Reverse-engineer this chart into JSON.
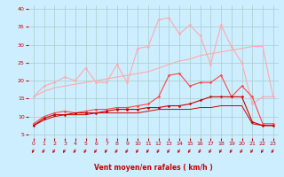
{
  "x": [
    0,
    1,
    2,
    3,
    4,
    5,
    6,
    7,
    8,
    9,
    10,
    11,
    12,
    13,
    14,
    15,
    16,
    17,
    18,
    19,
    20,
    21,
    22,
    23
  ],
  "series": [
    {
      "name": "diagonal_light",
      "color": "#ffaaaa",
      "linewidth": 0.8,
      "marker": null,
      "values": [
        15.5,
        17.0,
        18.0,
        18.5,
        19.0,
        19.5,
        20.0,
        20.5,
        21.0,
        21.5,
        22.0,
        22.5,
        23.5,
        24.5,
        25.5,
        26.0,
        27.0,
        27.5,
        28.0,
        28.5,
        29.0,
        29.5,
        29.5,
        15.5
      ]
    },
    {
      "name": "peaks_light",
      "color": "#ffaaaa",
      "linewidth": 0.8,
      "marker": "D",
      "markersize": 1.5,
      "values": [
        15.5,
        18.5,
        19.5,
        21.0,
        20.0,
        23.5,
        19.5,
        19.5,
        24.5,
        19.5,
        29.0,
        29.5,
        37.0,
        37.5,
        33.0,
        35.5,
        32.5,
        24.5,
        35.5,
        29.5,
        25.0,
        13.5,
        15.5,
        15.5
      ]
    },
    {
      "name": "medium_peaks",
      "color": "#ff4444",
      "linewidth": 0.8,
      "marker": "D",
      "markersize": 1.5,
      "values": [
        8.0,
        10.0,
        11.0,
        11.5,
        11.0,
        11.5,
        12.0,
        12.0,
        12.5,
        12.5,
        13.0,
        13.5,
        15.5,
        21.5,
        22.0,
        18.5,
        19.5,
        19.5,
        21.5,
        15.5,
        18.5,
        15.5,
        8.0,
        8.0
      ]
    },
    {
      "name": "dark_red_markers",
      "color": "#cc0000",
      "linewidth": 0.8,
      "marker": "D",
      "markersize": 1.5,
      "values": [
        7.5,
        9.5,
        10.5,
        10.5,
        11.0,
        11.0,
        11.0,
        11.5,
        12.0,
        12.0,
        12.0,
        12.5,
        12.5,
        13.0,
        13.0,
        13.5,
        14.5,
        15.5,
        15.5,
        15.5,
        15.5,
        8.5,
        7.5,
        7.5
      ]
    },
    {
      "name": "dark_red_plain",
      "color": "#cc0000",
      "linewidth": 0.7,
      "marker": null,
      "values": [
        7.5,
        9.0,
        10.0,
        10.5,
        10.5,
        10.5,
        11.0,
        11.0,
        11.0,
        11.0,
        11.0,
        11.5,
        12.0,
        12.0,
        12.0,
        12.0,
        12.5,
        12.5,
        13.0,
        13.0,
        13.0,
        8.0,
        7.5,
        7.5
      ]
    }
  ],
  "xlabel": "Vent moyen/en rafales ( km/h )",
  "xlim": [
    -0.5,
    23.5
  ],
  "ylim": [
    4,
    41
  ],
  "yticks": [
    5,
    10,
    15,
    20,
    25,
    30,
    35,
    40
  ],
  "xticks": [
    0,
    1,
    2,
    3,
    4,
    5,
    6,
    7,
    8,
    9,
    10,
    11,
    12,
    13,
    14,
    15,
    16,
    17,
    18,
    19,
    20,
    21,
    22,
    23
  ],
  "bg_color": "#cceeff",
  "grid_color": "#aacccc",
  "tick_color": "#cc0000",
  "arrow_color": "#cc0000",
  "xlabel_color": "#cc0000"
}
